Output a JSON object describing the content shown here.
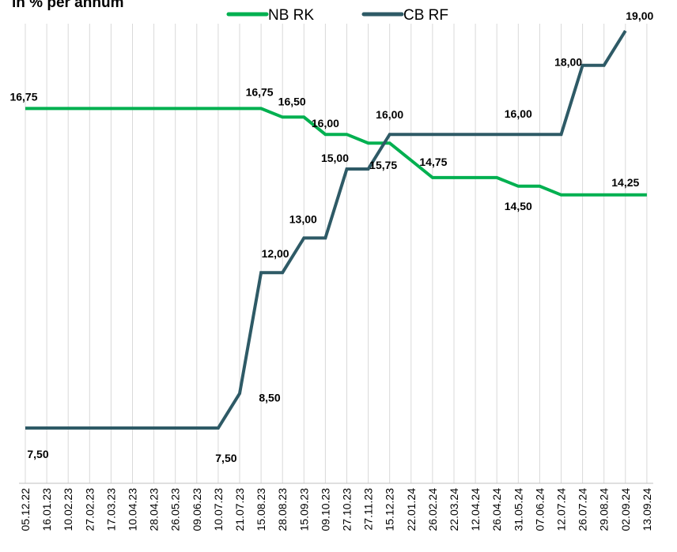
{
  "chart_data": {
    "type": "line",
    "title": "in % per annum",
    "categories": [
      "05.12.22",
      "16.01.23",
      "10.02.23",
      "27.02.23",
      "17.03.23",
      "10.04.23",
      "28.04.23",
      "26.05.23",
      "09.06.23",
      "10.07.23",
      "21.07.23",
      "15.08.23",
      "28.08.23",
      "15.09.23",
      "09.10.23",
      "27.10.23",
      "27.11.23",
      "15.12.23",
      "22.01.24",
      "26.02.24",
      "22.03.24",
      "12.04.24",
      "26.04.24",
      "31.05.24",
      "07.06.24",
      "12.07.24",
      "26.07.24",
      "29.08.24",
      "02.09.24",
      "13.09.24"
    ],
    "series": [
      {
        "name": "NB RK",
        "color": "#00b050",
        "values": [
          16.75,
          16.75,
          16.75,
          16.75,
          16.75,
          16.75,
          16.75,
          16.75,
          16.75,
          16.75,
          16.75,
          16.75,
          16.5,
          16.5,
          16.0,
          16.0,
          15.75,
          15.75,
          15.25,
          14.75,
          14.75,
          14.75,
          14.75,
          14.5,
          14.5,
          14.25,
          14.25,
          14.25,
          14.25,
          14.25
        ],
        "labels": [
          {
            "index": 0,
            "text": "16,75"
          },
          {
            "index": 11,
            "text": "16,75"
          },
          {
            "index": 12,
            "text": "16,50"
          },
          {
            "index": 14,
            "text": "16,00"
          },
          {
            "index": 17,
            "text": "15,75"
          },
          {
            "index": 19,
            "text": "14,75"
          },
          {
            "index": 23,
            "text": "14,50"
          },
          {
            "index": 28,
            "text": "14,25"
          }
        ]
      },
      {
        "name": "CB RF",
        "color": "#2e5a66",
        "values": [
          7.5,
          7.5,
          7.5,
          7.5,
          7.5,
          7.5,
          7.5,
          7.5,
          7.5,
          7.5,
          8.5,
          12.0,
          12.0,
          13.0,
          13.0,
          15.0,
          15.0,
          16.0,
          16.0,
          16.0,
          16.0,
          16.0,
          16.0,
          16.0,
          16.0,
          16.0,
          18.0,
          18.0,
          19.0,
          null
        ],
        "labels": [
          {
            "index": 0,
            "text": "7,50"
          },
          {
            "index": 9,
            "text": "7,50"
          },
          {
            "index": 10,
            "text": "8,50"
          },
          {
            "index": 11,
            "text": "12,00"
          },
          {
            "index": 13,
            "text": "13,00"
          },
          {
            "index": 15,
            "text": "15,00"
          },
          {
            "index": 17,
            "text": "16,00"
          },
          {
            "index": 23,
            "text": "16,00"
          },
          {
            "index": 26,
            "text": "18,00"
          },
          {
            "index": 28,
            "text": "19,00"
          }
        ]
      }
    ],
    "legend": {
      "position": "top",
      "entries": [
        "NB RK",
        "CB RF"
      ]
    },
    "grid": {
      "vertical": true,
      "horizontal": false
    },
    "y_axis_shown": false
  }
}
